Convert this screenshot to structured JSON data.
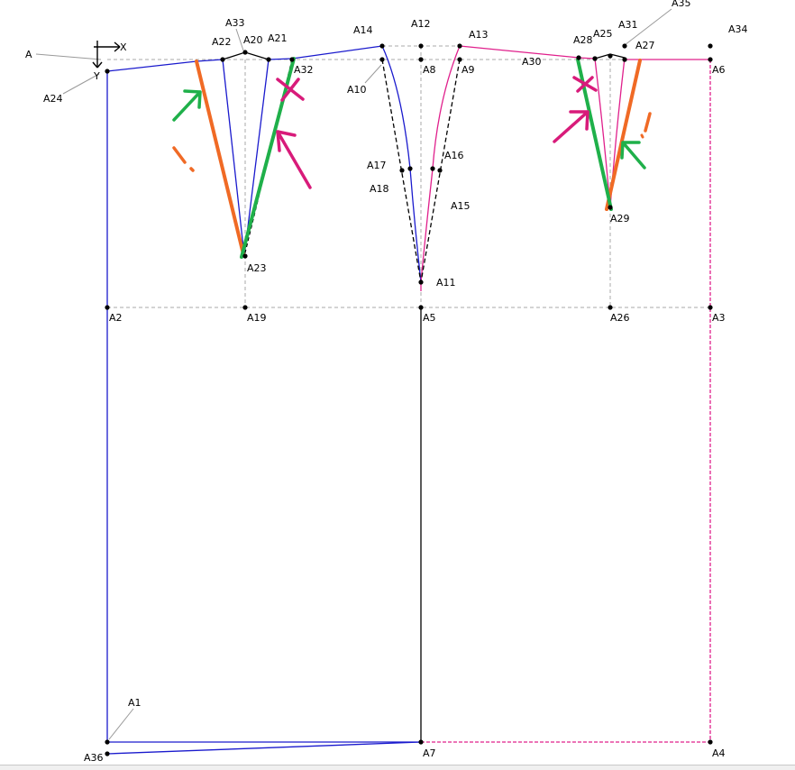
{
  "canvas": {
    "background": "#ffffff",
    "colors": {
      "construction": "#a8a8a8",
      "front_piece": "#1a1acd",
      "back_piece": "#e0208c",
      "black": "#000000",
      "annotation_green": "#1fb04a",
      "annotation_orange": "#f06a25",
      "annotation_pink": "#d81b7a"
    }
  },
  "axis": {
    "icon": "origin-axis-icon",
    "x_label": "X",
    "y_label": "Y"
  },
  "points": [
    {
      "id": "A",
      "label": "A"
    },
    {
      "id": "A1",
      "label": "A1"
    },
    {
      "id": "A2",
      "label": "A2"
    },
    {
      "id": "A3",
      "label": "A3"
    },
    {
      "id": "A4",
      "label": "A4"
    },
    {
      "id": "A5",
      "label": "A5"
    },
    {
      "id": "A6",
      "label": "A6"
    },
    {
      "id": "A7",
      "label": "A7"
    },
    {
      "id": "A8",
      "label": "A8"
    },
    {
      "id": "A9",
      "label": "A9"
    },
    {
      "id": "A10",
      "label": "A10"
    },
    {
      "id": "A11",
      "label": "A11"
    },
    {
      "id": "A12",
      "label": "A12"
    },
    {
      "id": "A13",
      "label": "A13"
    },
    {
      "id": "A14",
      "label": "A14"
    },
    {
      "id": "A15",
      "label": "A15"
    },
    {
      "id": "A16",
      "label": "A16"
    },
    {
      "id": "A17",
      "label": "A17"
    },
    {
      "id": "A18",
      "label": "A18"
    },
    {
      "id": "A19",
      "label": "A19"
    },
    {
      "id": "A20",
      "label": "A20"
    },
    {
      "id": "A21",
      "label": "A21"
    },
    {
      "id": "A22",
      "label": "A22"
    },
    {
      "id": "A23",
      "label": "A23"
    },
    {
      "id": "A24",
      "label": "A24"
    },
    {
      "id": "A25",
      "label": "A25"
    },
    {
      "id": "A26",
      "label": "A26"
    },
    {
      "id": "A27",
      "label": "A27"
    },
    {
      "id": "A28",
      "label": "A28"
    },
    {
      "id": "A29",
      "label": "A29"
    },
    {
      "id": "A30",
      "label": "A30"
    },
    {
      "id": "A31",
      "label": "A31"
    },
    {
      "id": "A32",
      "label": "A32"
    },
    {
      "id": "A33",
      "label": "A33"
    },
    {
      "id": "A34",
      "label": "A34"
    },
    {
      "id": "A35",
      "label": "A35"
    },
    {
      "id": "A36",
      "label": "A36"
    }
  ]
}
